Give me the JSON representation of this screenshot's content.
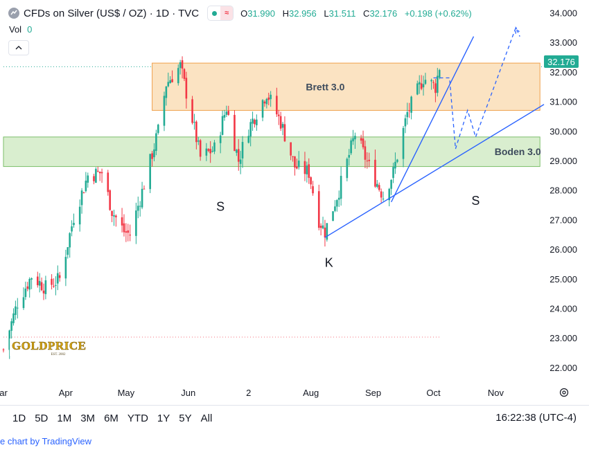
{
  "header": {
    "title": "CFDs on Silver (US$ / OZ) · 1D · TVC",
    "open_label": "O",
    "open": "31.990",
    "high_label": "H",
    "high": "32.956",
    "low_label": "L",
    "low": "31.511",
    "close_label": "C",
    "close": "32.176",
    "change": "+0.198 (+0.62%)"
  },
  "volume": {
    "label": "Vol",
    "value": "0"
  },
  "current_price": "32.176",
  "bottom_bar": {
    "ranges": [
      "1D",
      "5D",
      "1M",
      "3M",
      "6M",
      "YTD",
      "1Y",
      "5Y",
      "All"
    ],
    "clock": "16:22:38 (UTC-4)"
  },
  "credit": "e chart by TradingView",
  "watermark": {
    "text": "GOLDPRICE",
    "sub": "EST. 2002"
  },
  "colors": {
    "up": "#22ab94",
    "down": "#f23645",
    "trend": "#2962ff",
    "brett_fill": "#fbe3c2",
    "boden_fill": "#d9eecf"
  },
  "chart_data": {
    "type": "candlestick",
    "title": "CFDs on Silver (US$ / OZ) · 1D · TVC",
    "y_axis": {
      "min": 21.6,
      "max": 34.2,
      "ticks": [
        "22.000",
        "23.000",
        "24.000",
        "25.000",
        "26.000",
        "27.000",
        "28.000",
        "29.000",
        "30.000",
        "31.000",
        "32.000",
        "33.000",
        "34.000"
      ]
    },
    "x_axis": {
      "start": "2024-03-01",
      "end": "2024-11-25",
      "tick_labels": [
        {
          "label": "ar",
          "date": "2024-03-01"
        },
        {
          "label": "Apr",
          "date": "2024-04-01"
        },
        {
          "label": "May",
          "date": "2024-05-01"
        },
        {
          "label": "Jun",
          "date": "2024-06-01"
        },
        {
          "label": "2",
          "date": "2024-07-01"
        },
        {
          "label": "Aug",
          "date": "2024-08-01"
        },
        {
          "label": "Sep",
          "date": "2024-09-01"
        },
        {
          "label": "Oct",
          "date": "2024-10-01"
        },
        {
          "label": "Nov",
          "date": "2024-11-01"
        }
      ]
    },
    "price_path": [
      [
        "2024-03-01",
        22.6
      ],
      [
        "2024-03-08",
        24.2
      ],
      [
        "2024-03-15",
        25.1
      ],
      [
        "2024-03-22",
        24.7
      ],
      [
        "2024-03-29",
        25.0
      ],
      [
        "2024-04-05",
        27.1
      ],
      [
        "2024-04-12",
        28.5
      ],
      [
        "2024-04-19",
        28.6
      ],
      [
        "2024-04-24",
        27.3
      ],
      [
        "2024-04-30",
        26.6
      ],
      [
        "2024-05-03",
        26.5
      ],
      [
        "2024-05-10",
        28.2
      ],
      [
        "2024-05-17",
        30.0
      ],
      [
        "2024-05-21",
        31.6
      ],
      [
        "2024-05-28",
        32.2
      ],
      [
        "2024-06-03",
        30.4
      ],
      [
        "2024-06-07",
        29.1
      ],
      [
        "2024-06-14",
        29.4
      ],
      [
        "2024-06-20",
        30.8
      ],
      [
        "2024-06-26",
        29.0
      ],
      [
        "2024-07-01",
        30.1
      ],
      [
        "2024-07-10",
        31.3
      ],
      [
        "2024-07-17",
        30.3
      ],
      [
        "2024-07-24",
        28.8
      ],
      [
        "2024-07-31",
        28.6
      ],
      [
        "2024-08-05",
        27.0
      ],
      [
        "2024-08-08",
        26.6
      ],
      [
        "2024-08-15",
        28.0
      ],
      [
        "2024-08-23",
        29.9
      ],
      [
        "2024-08-30",
        28.8
      ],
      [
        "2024-09-06",
        27.8
      ],
      [
        "2024-09-11",
        28.6
      ],
      [
        "2024-09-18",
        30.6
      ],
      [
        "2024-09-26",
        31.8
      ],
      [
        "2024-10-02",
        31.5
      ],
      [
        "2024-10-04",
        32.18
      ]
    ],
    "zones": [
      {
        "name": "Brett 3.0",
        "y_range": [
          30.7,
          32.3
        ],
        "x_range": [
          "2024-05-14",
          "2024-11-23"
        ]
      },
      {
        "name": "Boden 3.0",
        "y_range": [
          28.8,
          29.8
        ],
        "x_range": [
          "2024-03-01",
          "2024-11-23"
        ]
      }
    ],
    "trendlines": [
      {
        "from": [
          "2024-08-08",
          26.4
        ],
        "to": [
          "2024-11-25",
          30.9
        ]
      },
      {
        "from": [
          "2024-09-10",
          27.6
        ],
        "to": [
          "2024-10-21",
          33.2
        ]
      }
    ],
    "projection": [
      [
        "2024-10-01",
        31.8
      ],
      [
        "2024-10-09",
        31.8
      ],
      [
        "2024-10-12",
        29.4
      ],
      [
        "2024-10-18",
        30.7
      ],
      [
        "2024-10-22",
        29.8
      ],
      [
        "2024-11-11",
        33.5
      ],
      [
        "2024-11-13",
        33.2
      ]
    ],
    "annotations": [
      {
        "text": "S",
        "at": [
          "2024-06-17",
          27.3
        ]
      },
      {
        "text": "K",
        "at": [
          "2024-08-10",
          25.4
        ]
      },
      {
        "text": "S",
        "at": [
          "2024-10-22",
          27.5
        ]
      }
    ]
  }
}
